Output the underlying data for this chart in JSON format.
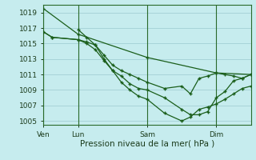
{
  "title": "Pression niveau de la mer( hPa )",
  "bg_color": "#c6ecee",
  "grid_color": "#a8d4d8",
  "line_color": "#1a5e1a",
  "xlim": [
    0,
    72
  ],
  "ylim": [
    1004.5,
    1020
  ],
  "yticks": [
    1005,
    1007,
    1009,
    1011,
    1013,
    1015,
    1017,
    1019
  ],
  "xticks": [
    0,
    12,
    36,
    60
  ],
  "xtick_labels": [
    "Ven",
    "Lun",
    "Sam",
    "Dim"
  ],
  "vlines": [
    0,
    12,
    36,
    60
  ],
  "series": [
    {
      "x": [
        0,
        12,
        36,
        60,
        72
      ],
      "y": [
        1019.5,
        1016.2,
        1013.2,
        1011.2,
        1011.0
      ]
    },
    {
      "x": [
        0,
        3,
        12,
        15,
        18,
        21,
        24,
        27,
        30,
        33,
        36,
        42,
        48,
        51,
        54,
        57,
        60,
        63,
        66,
        69,
        72
      ],
      "y": [
        1016.5,
        1015.8,
        1015.5,
        1015.2,
        1014.8,
        1013.5,
        1012.2,
        1011.5,
        1011.0,
        1010.5,
        1010.0,
        1009.2,
        1009.5,
        1008.5,
        1010.5,
        1010.8,
        1011.2,
        1011.0,
        1010.8,
        1010.5,
        1011.0
      ]
    },
    {
      "x": [
        0,
        3,
        12,
        15,
        18,
        21,
        24,
        27,
        30,
        33,
        36,
        42,
        48,
        51,
        54,
        57,
        60,
        63,
        66,
        69,
        72
      ],
      "y": [
        1016.5,
        1015.8,
        1015.5,
        1015.0,
        1014.2,
        1012.8,
        1011.5,
        1010.8,
        1009.8,
        1009.2,
        1009.0,
        1008.0,
        1006.5,
        1005.8,
        1005.8,
        1006.2,
        1008.0,
        1008.8,
        1010.2,
        1010.5,
        1011.0
      ]
    },
    {
      "x": [
        12,
        15,
        18,
        21,
        24,
        27,
        30,
        33,
        36,
        42,
        48,
        51,
        54,
        57,
        60,
        63,
        66,
        69,
        72
      ],
      "y": [
        1016.8,
        1015.8,
        1014.8,
        1013.0,
        1011.5,
        1010.0,
        1009.0,
        1008.2,
        1007.8,
        1006.0,
        1005.0,
        1005.5,
        1006.5,
        1006.8,
        1007.2,
        1007.8,
        1008.5,
        1009.2,
        1009.5
      ]
    }
  ]
}
